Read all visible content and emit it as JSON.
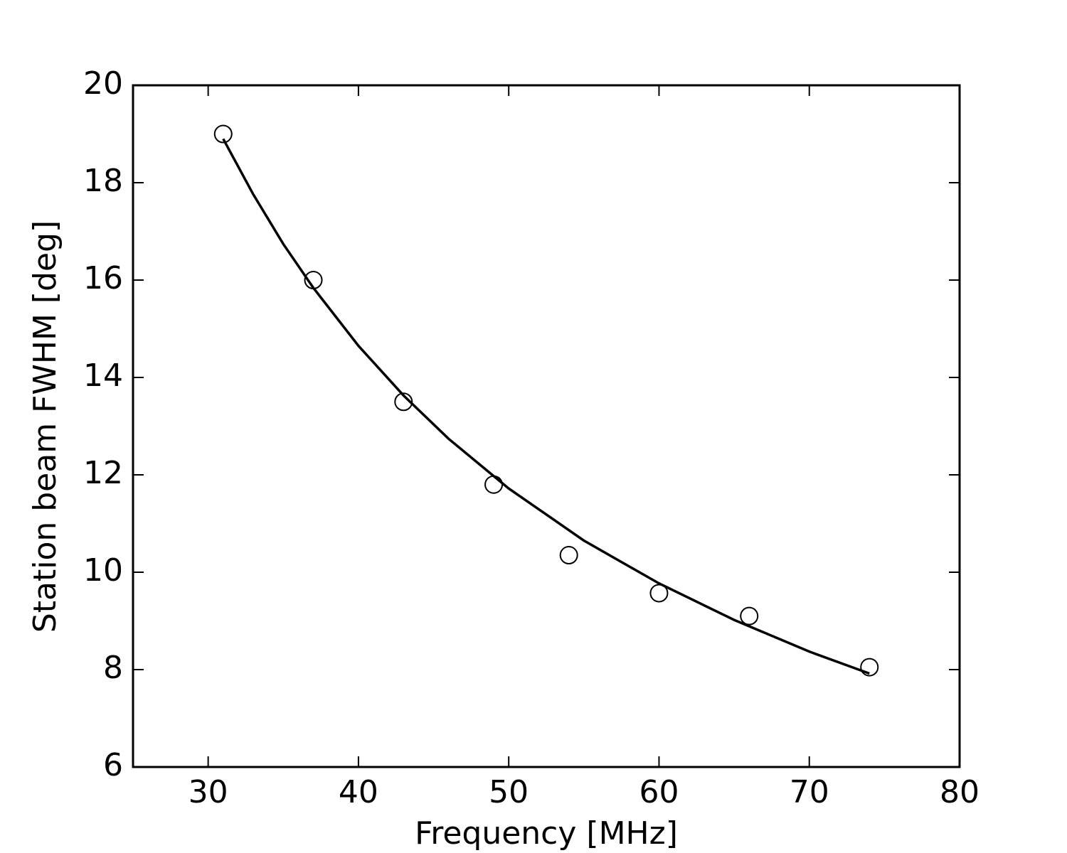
{
  "chart_data": {
    "type": "scatter",
    "xlabel": "Frequency [MHz]",
    "ylabel": "Station beam FWHM [deg]",
    "xlim": [
      25,
      80
    ],
    "xticks": [
      30,
      40,
      50,
      60,
      70,
      80
    ],
    "ylim": [
      6,
      20
    ],
    "yticks": [
      6,
      8,
      10,
      12,
      14,
      16,
      18,
      20
    ],
    "series": [
      {
        "mode": "markers",
        "color": "#000000",
        "x": [
          31,
          37,
          43,
          49,
          54,
          60,
          66,
          74
        ],
        "values": [
          19.0,
          16.0,
          13.5,
          11.8,
          10.35,
          9.57,
          9.1,
          8.05
        ]
      },
      {
        "mode": "line",
        "color": "#000000",
        "x": [
          31,
          33,
          35,
          37,
          40,
          43,
          46,
          50,
          55,
          60,
          65,
          70,
          74
        ],
        "values": [
          18.9,
          17.76,
          16.74,
          15.84,
          14.65,
          13.63,
          12.74,
          11.72,
          10.65,
          9.77,
          9.02,
          8.37,
          7.92
        ]
      }
    ]
  }
}
